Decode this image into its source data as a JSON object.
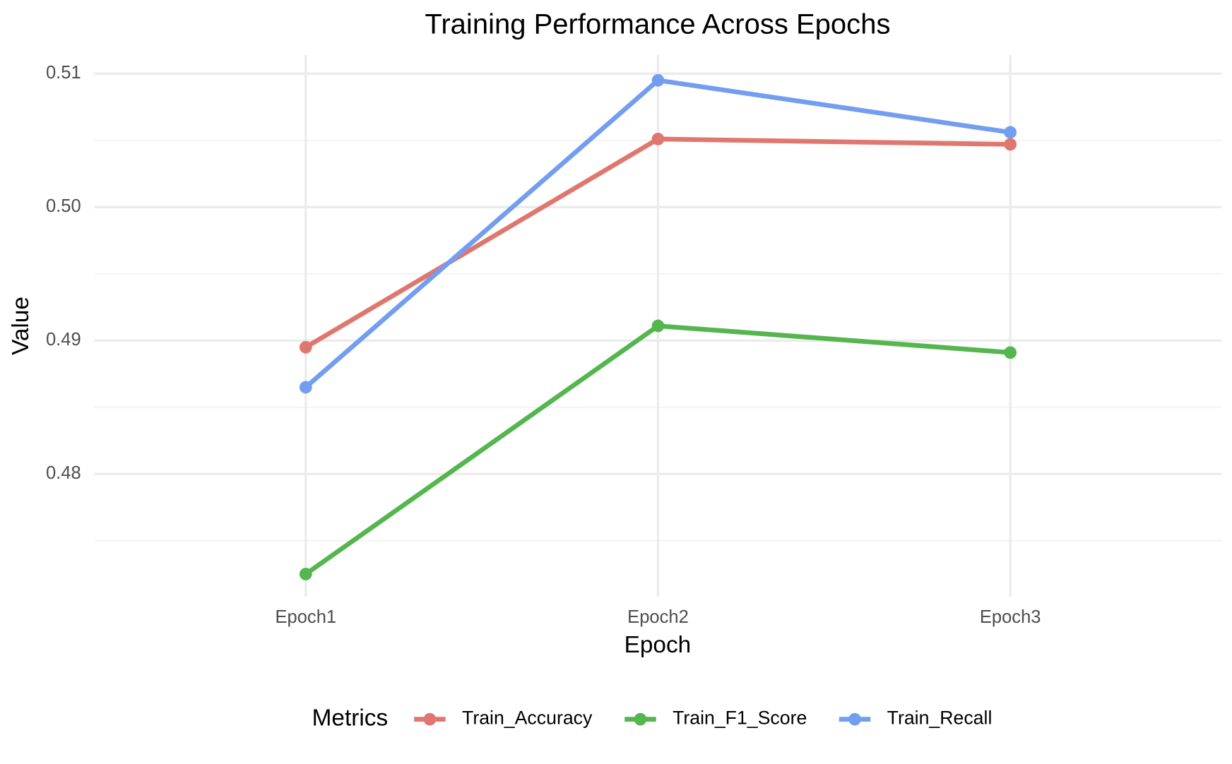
{
  "chart_data": {
    "type": "line",
    "title": "Training Performance Across Epochs",
    "x_label": "Epoch",
    "y_label": "Value",
    "categories": [
      "Epoch1",
      "Epoch2",
      "Epoch3"
    ],
    "series": [
      {
        "name": "Train_Accuracy",
        "color": "#e0776f",
        "values": [
          0.4895,
          0.5051,
          0.5047
        ]
      },
      {
        "name": "Train_F1_Score",
        "color": "#55b64f",
        "values": [
          0.4725,
          0.4911,
          0.4891
        ]
      },
      {
        "name": "Train_Recall",
        "color": "#739ef0",
        "values": [
          0.4865,
          0.5095,
          0.5056
        ]
      }
    ],
    "ylim": [
      0.4708,
      0.5114
    ],
    "yticks": [
      0.48,
      0.49,
      {
        "value": 0.5,
        "label": "0.50"
      },
      0.51
    ],
    "minor_yticks": [
      0.475,
      0.485,
      0.495,
      0.505
    ],
    "grid": true,
    "legend_title": "Metrics",
    "legend_position": "bottom"
  }
}
